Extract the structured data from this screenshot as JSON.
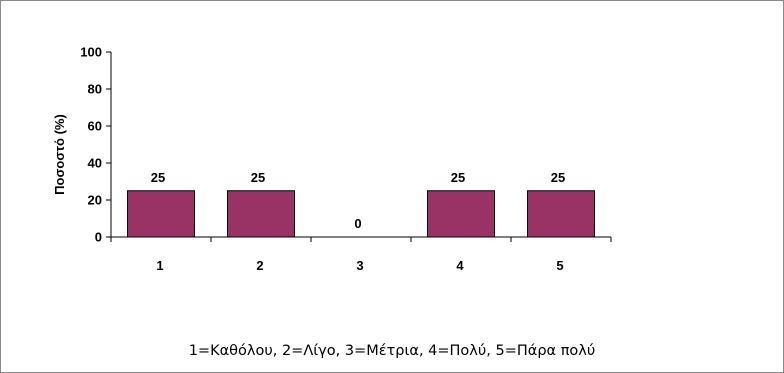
{
  "chart_data": {
    "type": "bar",
    "categories": [
      "1",
      "2",
      "3",
      "4",
      "5"
    ],
    "values": [
      25,
      25,
      0,
      25,
      25
    ],
    "data_labels": [
      "25",
      "25",
      "0",
      "25",
      "25"
    ],
    "title": "",
    "xlabel": "",
    "ylabel": "Ποσοστό (%)",
    "ylim": [
      0,
      100
    ],
    "yticks": [
      "0",
      "20",
      "40",
      "60",
      "80",
      "100"
    ],
    "grid": false,
    "bar_color": "#993366",
    "footnote": "1=Καθόλου, 2=Λίγο, 3=Μέτρια, 4=Πολύ, 5=Πάρα πολύ"
  }
}
